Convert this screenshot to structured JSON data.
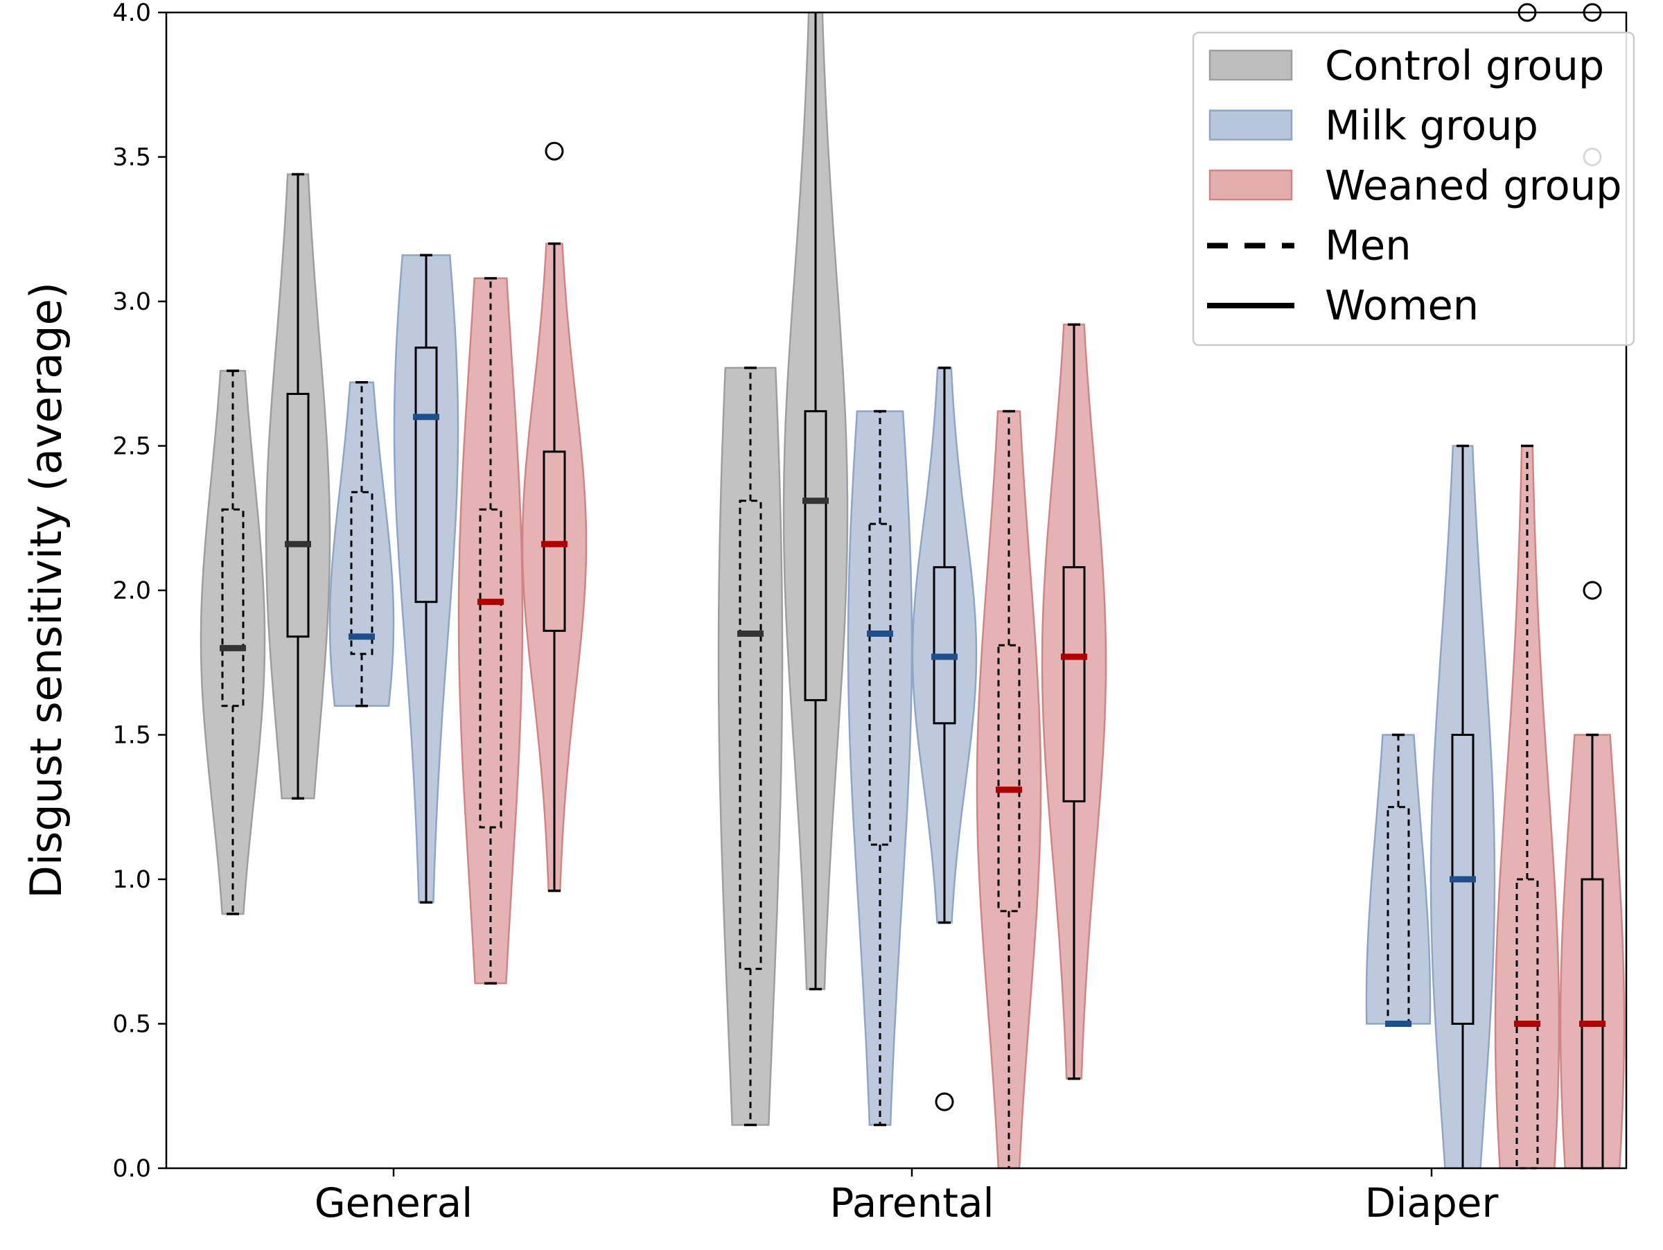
{
  "chart_data": {
    "type": "violin",
    "ylabel": "Disgust sensitivity (average)",
    "xlabel": "",
    "ylim": [
      0.0,
      4.0
    ],
    "yticks": [
      "0.0",
      "0.5",
      "1.0",
      "1.5",
      "2.0",
      "2.5",
      "3.0",
      "3.5",
      "4.0"
    ],
    "categories": [
      "General",
      "Parental",
      "Diaper"
    ],
    "grid": false,
    "legend_position": "top-right",
    "legend": [
      {
        "label": "Control group",
        "kind": "patch",
        "group": "control"
      },
      {
        "label": "Milk group",
        "kind": "patch",
        "group": "milk"
      },
      {
        "label": "Weaned group",
        "kind": "patch",
        "group": "weaned"
      },
      {
        "label": "Men",
        "kind": "line",
        "style": "dashed"
      },
      {
        "label": "Women",
        "kind": "line",
        "style": "solid"
      }
    ],
    "colors": {
      "control": {
        "fill": "#bdbdbd",
        "edge": "#9e9e9e",
        "median": "#333333"
      },
      "milk": {
        "fill": "#b7c6da",
        "edge": "#8fa5c4",
        "median": "#1f4e8c"
      },
      "weaned": {
        "fill": "#e3adad",
        "edge": "#d08585",
        "median": "#b00000"
      }
    },
    "series": [
      {
        "category": "General",
        "group": "control",
        "sex": "men",
        "min": 0.88,
        "q1": 1.6,
        "median": 1.8,
        "q3": 2.28,
        "max": 2.76,
        "outliers": []
      },
      {
        "category": "General",
        "group": "control",
        "sex": "women",
        "min": 1.28,
        "q1": 1.84,
        "median": 2.16,
        "q3": 2.68,
        "max": 3.44,
        "outliers": []
      },
      {
        "category": "General",
        "group": "milk",
        "sex": "men",
        "min": 1.6,
        "q1": 1.78,
        "median": 1.84,
        "q3": 2.34,
        "max": 2.72,
        "outliers": []
      },
      {
        "category": "General",
        "group": "milk",
        "sex": "women",
        "min": 0.92,
        "q1": 1.96,
        "median": 2.6,
        "q3": 2.84,
        "max": 3.16,
        "outliers": []
      },
      {
        "category": "General",
        "group": "weaned",
        "sex": "men",
        "min": 0.64,
        "q1": 1.18,
        "median": 1.96,
        "q3": 2.28,
        "max": 3.08,
        "outliers": []
      },
      {
        "category": "General",
        "group": "weaned",
        "sex": "women",
        "min": 0.96,
        "q1": 1.86,
        "median": 2.16,
        "q3": 2.48,
        "max": 3.2,
        "outliers": [
          3.52
        ]
      },
      {
        "category": "Parental",
        "group": "control",
        "sex": "men",
        "min": 0.15,
        "q1": 0.69,
        "median": 1.85,
        "q3": 2.31,
        "max": 2.77,
        "outliers": []
      },
      {
        "category": "Parental",
        "group": "control",
        "sex": "women",
        "min": 0.62,
        "q1": 1.62,
        "median": 2.31,
        "q3": 2.62,
        "max": 4.0,
        "outliers": []
      },
      {
        "category": "Parental",
        "group": "milk",
        "sex": "men",
        "min": 0.15,
        "q1": 1.12,
        "median": 1.85,
        "q3": 2.23,
        "max": 2.62,
        "outliers": []
      },
      {
        "category": "Parental",
        "group": "milk",
        "sex": "women",
        "min": 0.85,
        "q1": 1.54,
        "median": 1.77,
        "q3": 2.08,
        "max": 2.77,
        "outliers": [
          0.23
        ]
      },
      {
        "category": "Parental",
        "group": "weaned",
        "sex": "men",
        "min": 0.0,
        "q1": 0.89,
        "median": 1.31,
        "q3": 1.81,
        "max": 2.62,
        "outliers": []
      },
      {
        "category": "Parental",
        "group": "weaned",
        "sex": "women",
        "min": 0.31,
        "q1": 1.27,
        "median": 1.77,
        "q3": 2.08,
        "max": 2.92,
        "outliers": []
      },
      {
        "category": "Diaper",
        "group": "milk",
        "sex": "men",
        "min": 0.5,
        "q1": 0.5,
        "median": 0.5,
        "q3": 1.25,
        "max": 1.5,
        "outliers": []
      },
      {
        "category": "Diaper",
        "group": "milk",
        "sex": "women",
        "min": 0.0,
        "q1": 0.5,
        "median": 1.0,
        "q3": 1.5,
        "max": 2.5,
        "outliers": []
      },
      {
        "category": "Diaper",
        "group": "weaned",
        "sex": "men",
        "min": 0.0,
        "q1": 0.0,
        "median": 0.5,
        "q3": 1.0,
        "max": 2.5,
        "outliers": [
          4.0
        ]
      },
      {
        "category": "Diaper",
        "group": "weaned",
        "sex": "women",
        "min": 0.0,
        "q1": 0.0,
        "median": 0.5,
        "q3": 1.0,
        "max": 1.5,
        "outliers": [
          2.0,
          3.5,
          4.0
        ]
      }
    ]
  }
}
